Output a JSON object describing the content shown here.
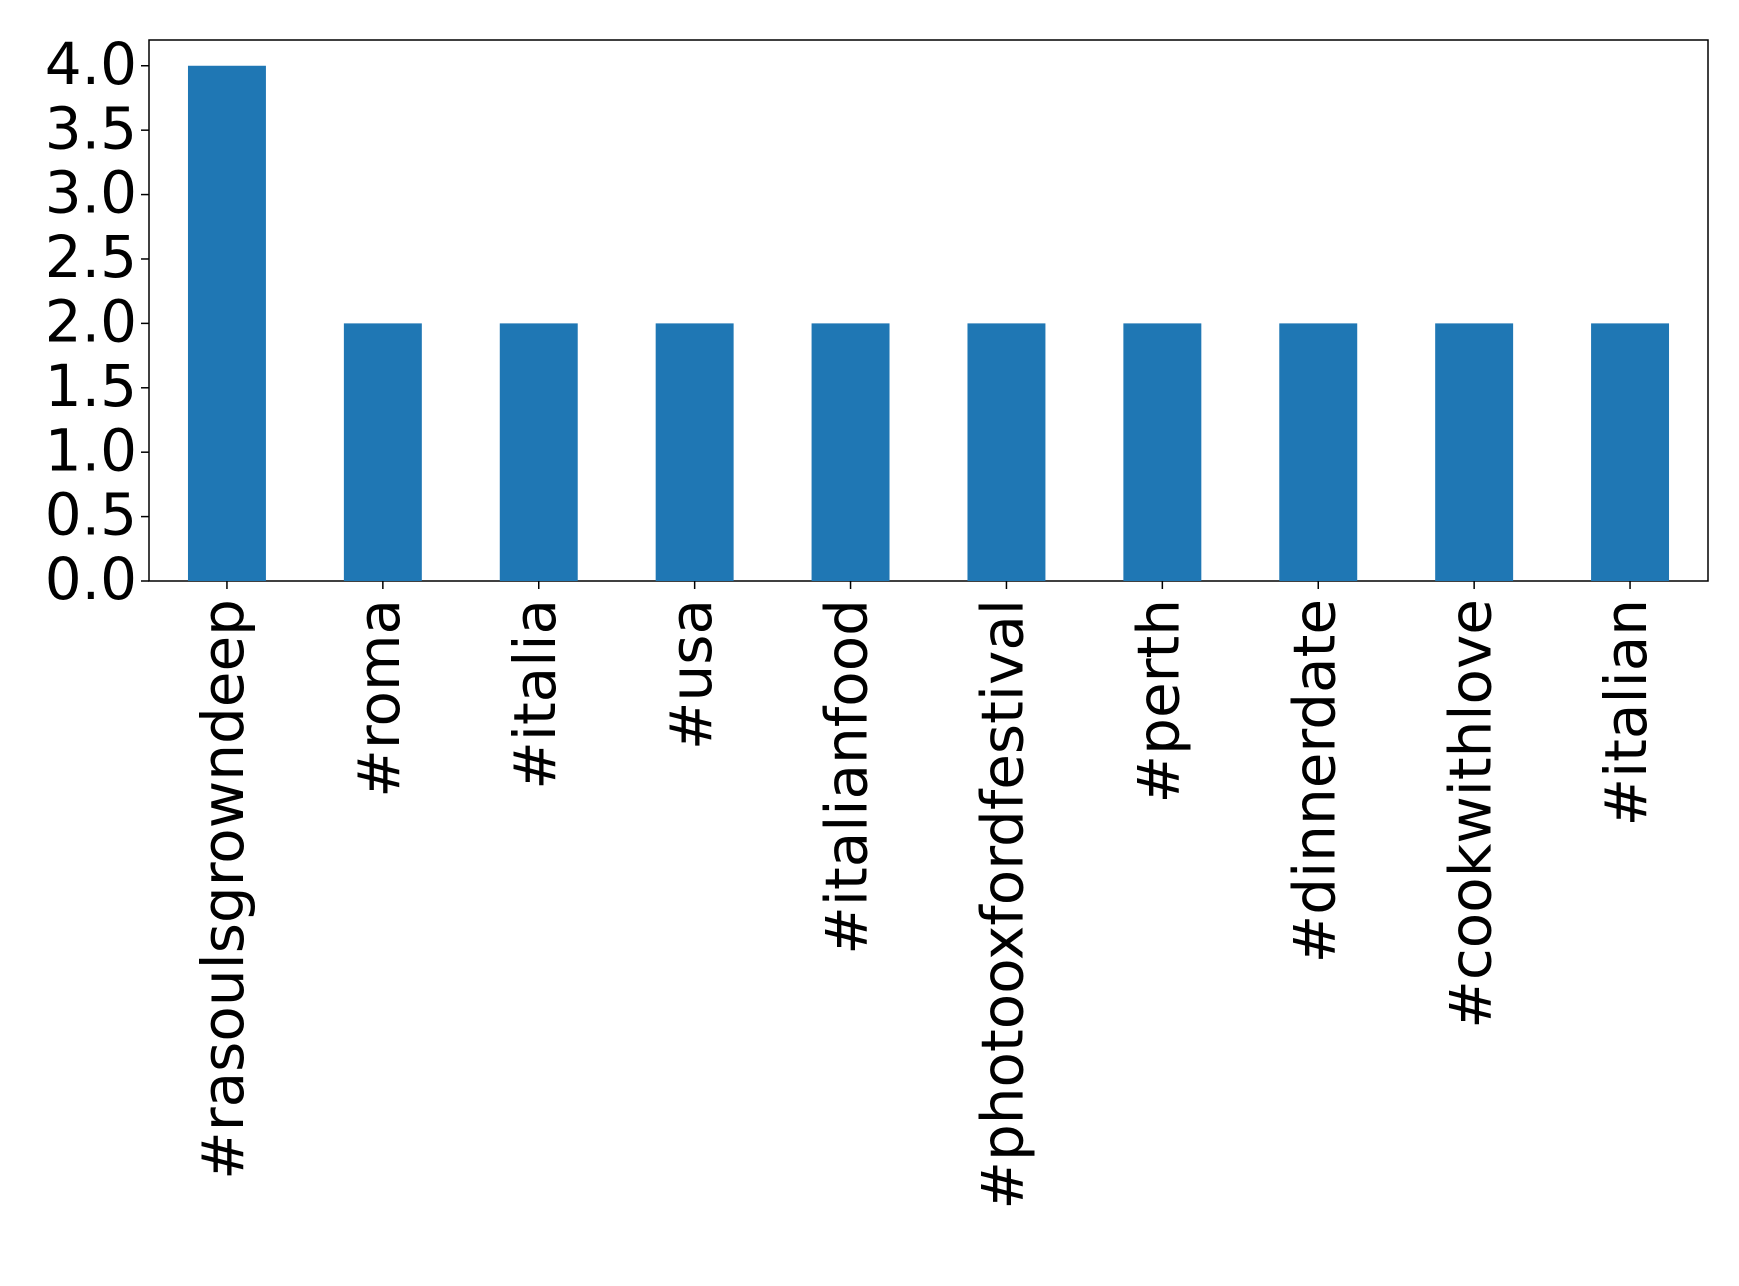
{
  "chart_data": {
    "type": "bar",
    "categories": [
      "#rasoulsgrowndeep",
      "#roma",
      "#italia",
      "#usa",
      "#italianfood",
      "#photooxfordfestival",
      "#perth",
      "#dinnerdate",
      "#cookwithlove",
      "#italian"
    ],
    "values": [
      4,
      2,
      2,
      2,
      2,
      2,
      2,
      2,
      2,
      2
    ],
    "color": "#1f77b4",
    "ylim": [
      0,
      4.2
    ],
    "yticks": [
      {
        "value": 0,
        "label": "0.0"
      },
      {
        "value": 0.5,
        "label": "0.5"
      },
      {
        "value": 1,
        "label": "1.0"
      },
      {
        "value": 1.5,
        "label": "1.5"
      },
      {
        "value": 2,
        "label": "2.0"
      },
      {
        "value": 2.5,
        "label": "2.5"
      },
      {
        "value": 3,
        "label": "3.0"
      },
      {
        "value": 3.5,
        "label": "3.5"
      },
      {
        "value": 4,
        "label": "4.0"
      }
    ],
    "grid": false
  }
}
